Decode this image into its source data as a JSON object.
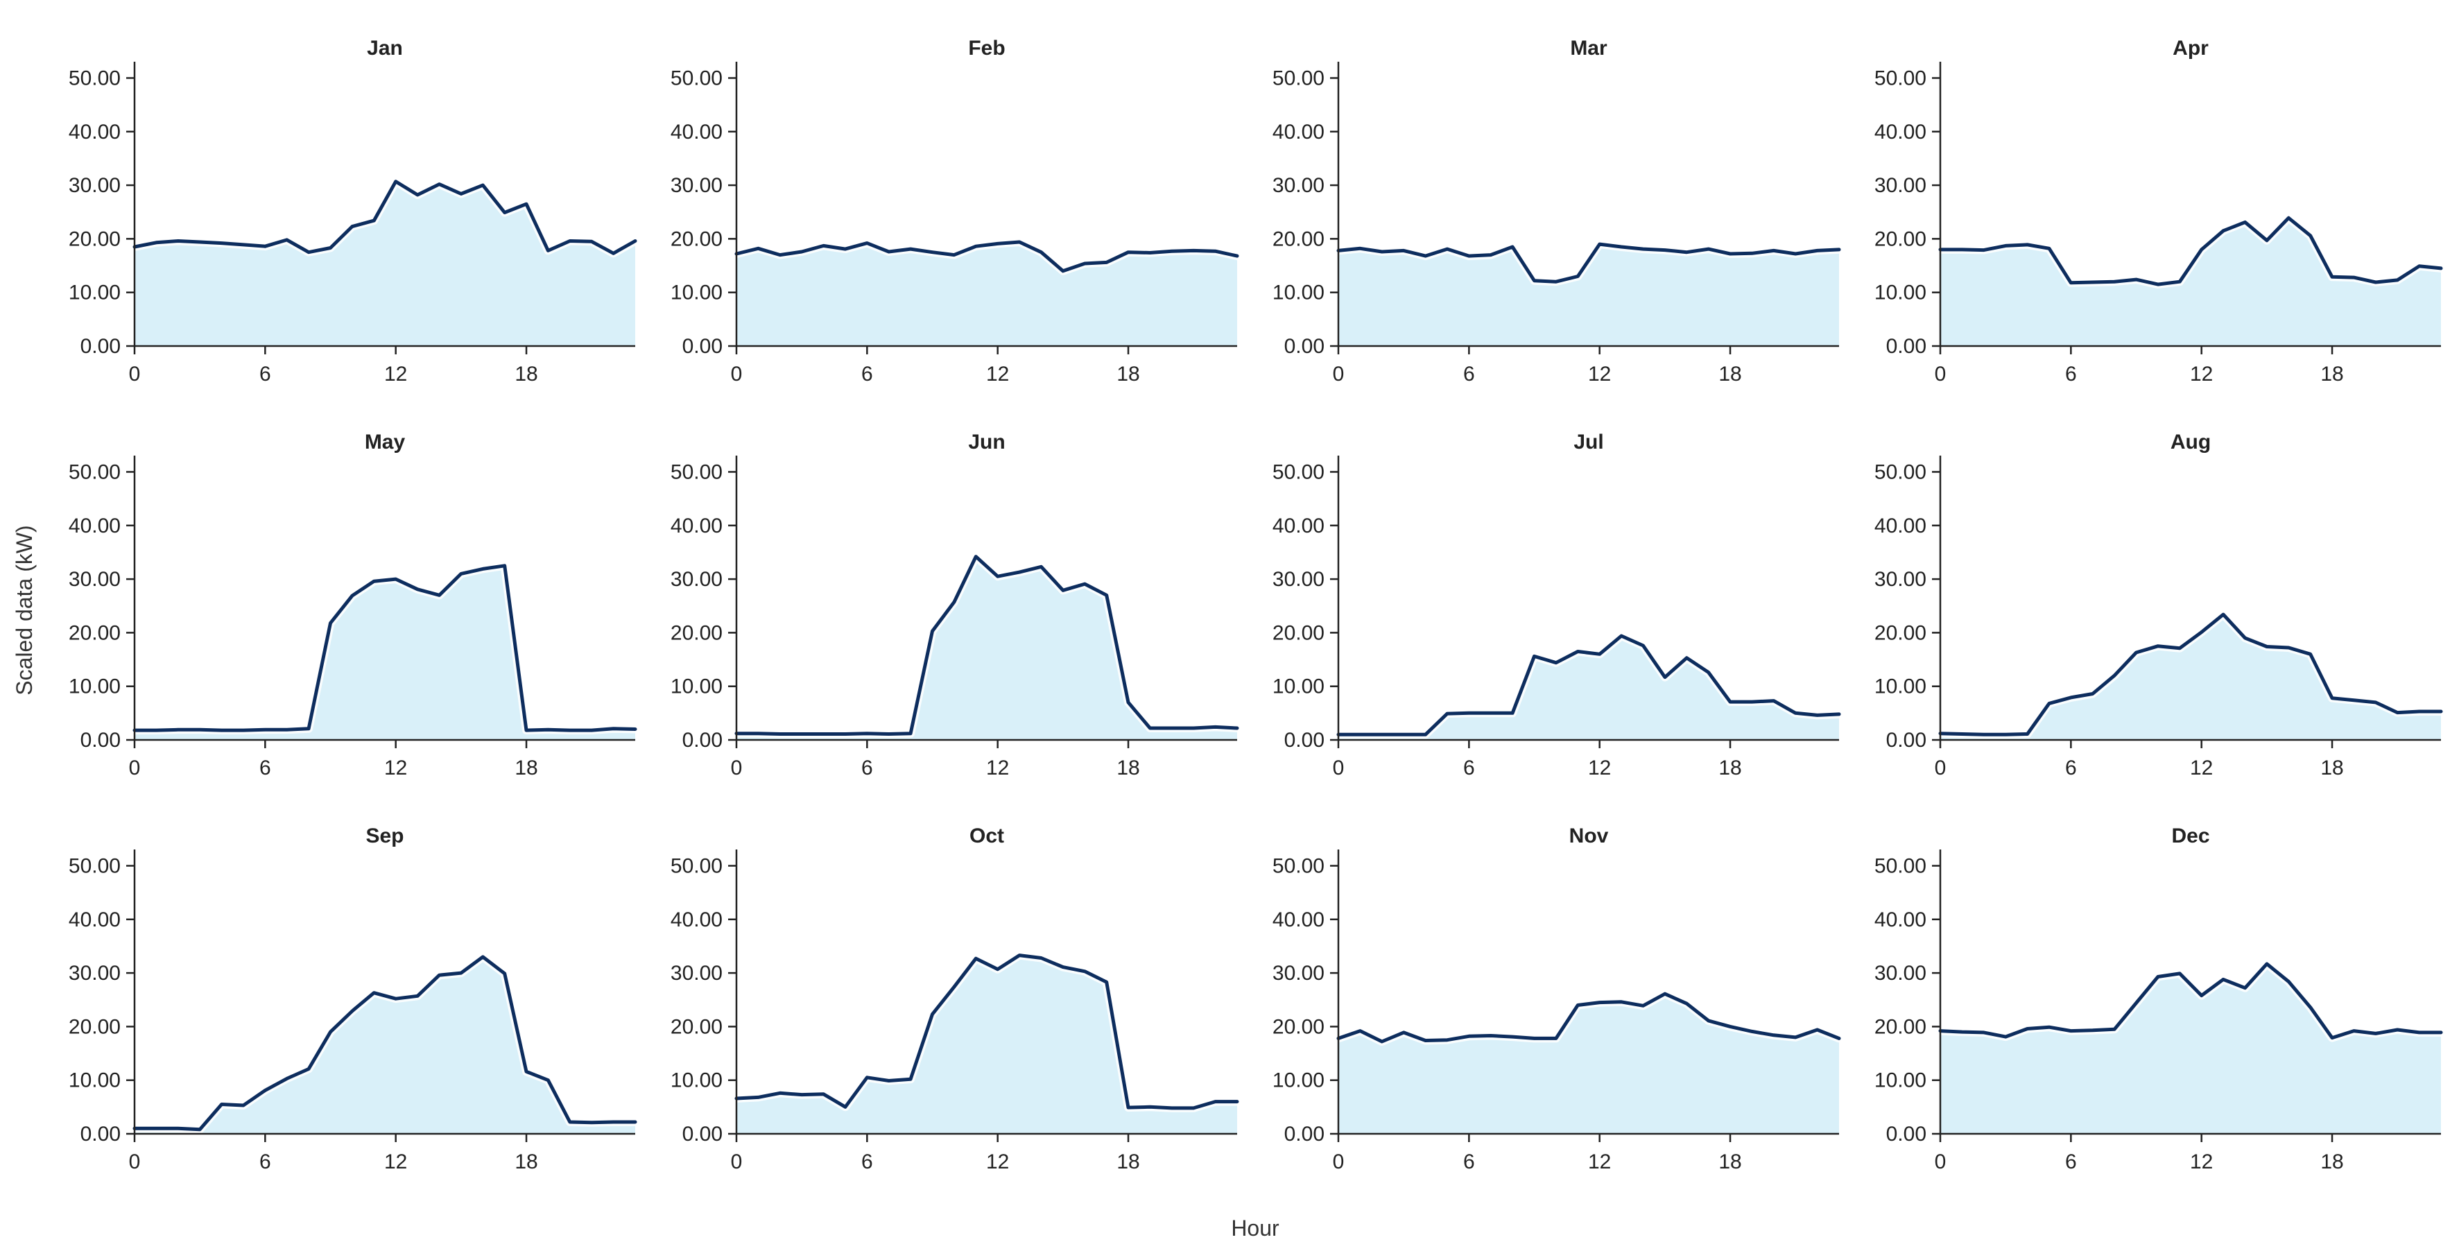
{
  "chart_data": {
    "type": "area",
    "layout": "small-multiples-3x4",
    "xlabel": "Hour",
    "ylabel": "Scaled data (kW)",
    "xlim": [
      0,
      23
    ],
    "ylim": [
      0,
      52
    ],
    "xticks": [
      0,
      6,
      12,
      18
    ],
    "yticks": [
      0,
      10,
      20,
      30,
      40,
      50
    ],
    "ytick_labels": [
      "0.00",
      "10.00",
      "20.00",
      "30.00",
      "40.00",
      "50.00"
    ],
    "grid": false,
    "colors": {
      "line": "#0d2d5e",
      "fill": "#d9f0f9"
    },
    "panels": [
      {
        "title": "Jan",
        "x": [
          0,
          1,
          2,
          3,
          4,
          5,
          6,
          7,
          8,
          9,
          10,
          11,
          12,
          13,
          14,
          15,
          16,
          17,
          18,
          19,
          20,
          21,
          22,
          23
        ],
        "values": [
          18.5,
          19.3,
          19.6,
          19.4,
          19.2,
          18.9,
          18.6,
          19.8,
          17.5,
          18.3,
          22.3,
          23.4,
          30.7,
          28.2,
          30.2,
          28.4,
          30.0,
          24.9,
          26.5,
          17.8,
          19.6,
          19.5,
          17.3,
          19.6
        ]
      },
      {
        "title": "Feb",
        "x": [
          0,
          1,
          2,
          3,
          4,
          5,
          6,
          7,
          8,
          9,
          10,
          11,
          12,
          13,
          14,
          15,
          16,
          17,
          18,
          19,
          20,
          21,
          22,
          23
        ],
        "values": [
          17.2,
          18.2,
          17.0,
          17.6,
          18.7,
          18.1,
          19.2,
          17.6,
          18.1,
          17.5,
          17.0,
          18.6,
          19.1,
          19.4,
          17.5,
          14.0,
          15.4,
          15.6,
          17.5,
          17.4,
          17.7,
          17.8,
          17.7,
          16.8
        ]
      },
      {
        "title": "Mar",
        "x": [
          0,
          1,
          2,
          3,
          4,
          5,
          6,
          7,
          8,
          9,
          10,
          11,
          12,
          13,
          14,
          15,
          16,
          17,
          18,
          19,
          20,
          21,
          22,
          23
        ],
        "values": [
          17.8,
          18.2,
          17.6,
          17.8,
          16.8,
          18.1,
          16.8,
          17.0,
          18.5,
          12.2,
          12.0,
          13.0,
          19.0,
          18.5,
          18.1,
          17.9,
          17.5,
          18.1,
          17.2,
          17.3,
          17.8,
          17.2,
          17.8,
          18.0
        ]
      },
      {
        "title": "Apr",
        "x": [
          0,
          1,
          2,
          3,
          4,
          5,
          6,
          7,
          8,
          9,
          10,
          11,
          12,
          13,
          14,
          15,
          16,
          17,
          18,
          19,
          20,
          21,
          22,
          23
        ],
        "values": [
          18.0,
          18.0,
          17.9,
          18.7,
          18.9,
          18.2,
          11.8,
          11.9,
          12.0,
          12.4,
          11.5,
          12.0,
          18.0,
          21.5,
          23.1,
          19.7,
          23.9,
          20.6,
          12.9,
          12.8,
          11.9,
          12.3,
          14.9,
          14.5
        ]
      },
      {
        "title": "May",
        "x": [
          0,
          1,
          2,
          3,
          4,
          5,
          6,
          7,
          8,
          9,
          10,
          11,
          12,
          13,
          14,
          15,
          16,
          17,
          18,
          19,
          20,
          21,
          22,
          23
        ],
        "values": [
          1.8,
          1.8,
          1.9,
          1.9,
          1.8,
          1.8,
          1.9,
          1.9,
          2.1,
          21.8,
          26.9,
          29.6,
          30.0,
          28.1,
          27.0,
          31.0,
          31.9,
          32.5,
          1.8,
          1.9,
          1.8,
          1.8,
          2.1,
          2.0
        ]
      },
      {
        "title": "Jun",
        "x": [
          0,
          1,
          2,
          3,
          4,
          5,
          6,
          7,
          8,
          9,
          10,
          11,
          12,
          13,
          14,
          15,
          16,
          17,
          18,
          19,
          20,
          21,
          22,
          23
        ],
        "values": [
          1.2,
          1.2,
          1.1,
          1.1,
          1.1,
          1.1,
          1.2,
          1.1,
          1.2,
          20.3,
          25.7,
          34.2,
          30.5,
          31.3,
          32.3,
          27.9,
          29.1,
          27.0,
          7.0,
          2.2,
          2.2,
          2.2,
          2.4,
          2.2
        ]
      },
      {
        "title": "Jul",
        "x": [
          0,
          1,
          2,
          3,
          4,
          5,
          6,
          7,
          8,
          9,
          10,
          11,
          12,
          13,
          14,
          15,
          16,
          17,
          18,
          19,
          20,
          21,
          22,
          23
        ],
        "values": [
          1.0,
          1.0,
          1.0,
          1.0,
          1.0,
          4.9,
          5.0,
          5.0,
          5.0,
          15.6,
          14.4,
          16.5,
          16.0,
          19.4,
          17.6,
          11.7,
          15.3,
          12.6,
          7.1,
          7.1,
          7.3,
          5.0,
          4.6,
          4.8
        ]
      },
      {
        "title": "Aug",
        "x": [
          0,
          1,
          2,
          3,
          4,
          5,
          6,
          7,
          8,
          9,
          10,
          11,
          12,
          13,
          14,
          15,
          16,
          17,
          18,
          19,
          20,
          21,
          22,
          23
        ],
        "values": [
          1.2,
          1.1,
          1.0,
          1.0,
          1.1,
          6.8,
          7.9,
          8.6,
          12.0,
          16.3,
          17.5,
          17.1,
          20.1,
          23.4,
          19.0,
          17.4,
          17.2,
          16.0,
          7.8,
          7.4,
          7.0,
          5.1,
          5.3,
          5.3
        ]
      },
      {
        "title": "Sep",
        "x": [
          0,
          1,
          2,
          3,
          4,
          5,
          6,
          7,
          8,
          9,
          10,
          11,
          12,
          13,
          14,
          15,
          16,
          17,
          18,
          19,
          20,
          21,
          22,
          23
        ],
        "values": [
          1.0,
          1.0,
          1.0,
          0.8,
          5.5,
          5.3,
          8.1,
          10.3,
          12.1,
          19.0,
          22.9,
          26.3,
          25.2,
          25.7,
          29.6,
          30.0,
          33.0,
          29.9,
          11.6,
          10.0,
          2.2,
          2.1,
          2.2,
          2.2
        ]
      },
      {
        "title": "Oct",
        "x": [
          0,
          1,
          2,
          3,
          4,
          5,
          6,
          7,
          8,
          9,
          10,
          11,
          12,
          13,
          14,
          15,
          16,
          17,
          18,
          19,
          20,
          21,
          22,
          23
        ],
        "values": [
          6.6,
          6.8,
          7.6,
          7.3,
          7.4,
          5.0,
          10.5,
          9.9,
          10.2,
          22.3,
          27.4,
          32.7,
          30.7,
          33.3,
          32.8,
          31.1,
          30.3,
          28.3,
          4.9,
          5.0,
          4.8,
          4.8,
          6.0,
          6.0
        ]
      },
      {
        "title": "Nov",
        "x": [
          0,
          1,
          2,
          3,
          4,
          5,
          6,
          7,
          8,
          9,
          10,
          11,
          12,
          13,
          14,
          15,
          16,
          17,
          18,
          19,
          20,
          21,
          22,
          23
        ],
        "values": [
          17.8,
          19.2,
          17.2,
          18.9,
          17.4,
          17.5,
          18.2,
          18.3,
          18.1,
          17.8,
          17.8,
          24.0,
          24.5,
          24.6,
          23.9,
          26.1,
          24.3,
          21.1,
          20.0,
          19.1,
          18.4,
          18.0,
          19.4,
          17.8
        ]
      },
      {
        "title": "Dec",
        "x": [
          0,
          1,
          2,
          3,
          4,
          5,
          6,
          7,
          8,
          9,
          10,
          11,
          12,
          13,
          14,
          15,
          16,
          17,
          18,
          19,
          20,
          21,
          22,
          23
        ],
        "values": [
          19.2,
          19.0,
          18.9,
          18.1,
          19.6,
          19.9,
          19.2,
          19.3,
          19.5,
          24.4,
          29.3,
          29.9,
          25.8,
          28.8,
          27.2,
          31.7,
          28.4,
          23.6,
          17.9,
          19.2,
          18.7,
          19.4,
          18.9,
          18.9
        ]
      }
    ]
  }
}
